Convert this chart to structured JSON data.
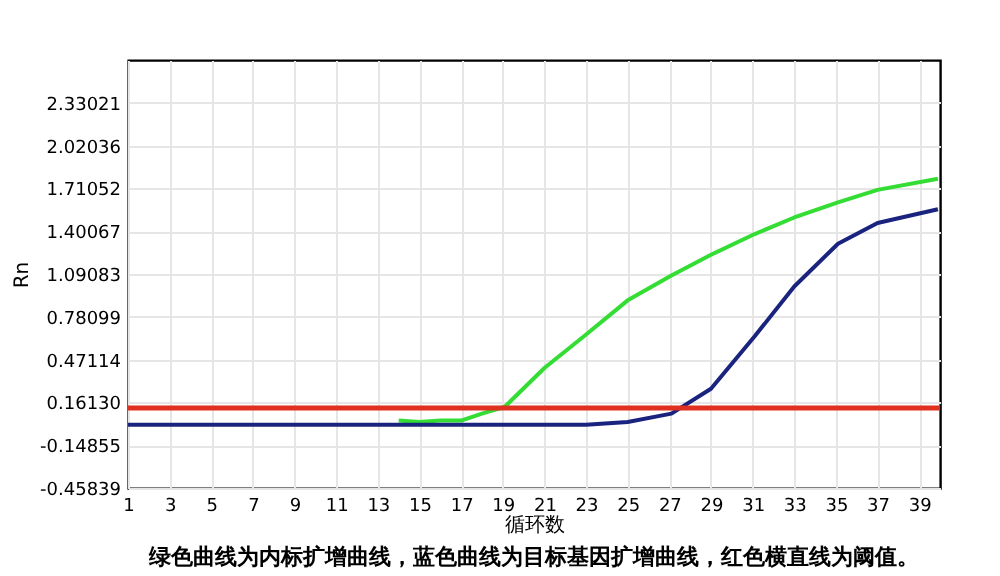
{
  "chart_data": {
    "type": "line",
    "xlabel": "循环数",
    "ylabel": "Rn",
    "annotations": [
      "绿色曲线为内标扩增曲线，蓝色曲线为目标基因扩增曲线，红色横直线为阈值。"
    ],
    "xlim": [
      1,
      40
    ],
    "xticks": [
      1,
      3,
      5,
      7,
      9,
      11,
      13,
      15,
      17,
      19,
      21,
      23,
      25,
      27,
      29,
      31,
      33,
      35,
      37,
      39
    ],
    "ylim": [
      -0.45839,
      2.64006
    ],
    "yticks": [
      -0.45839,
      -0.14855,
      {
        "value": 0.1613,
        "label": "0.16130"
      },
      0.47114,
      0.78099,
      1.09083,
      1.40067,
      1.71052,
      2.02036,
      2.33021
    ],
    "grid": true,
    "legend": false,
    "marker": "none",
    "line_style": "solid",
    "series": [
      {
        "color": "#33dd33",
        "x": [
          14,
          15,
          16,
          17,
          18,
          19.1,
          21,
          22.9,
          25,
          27.1,
          29,
          31.1,
          33,
          35.1,
          37,
          39.9
        ],
        "values": [
          0.03,
          0.02,
          0.03,
          0.03,
          0.08,
          0.13,
          0.41,
          0.64,
          0.9,
          1.08,
          1.23,
          1.38,
          1.5,
          1.61,
          1.7,
          1.78
        ]
      },
      {
        "color": "#1a237e",
        "x": [
          1,
          5,
          10,
          15,
          20,
          23,
          25,
          27.1,
          29,
          31.1,
          33,
          35.1,
          37,
          39.9
        ],
        "values": [
          0.0,
          0.0,
          0.0,
          0.0,
          0.0,
          0.0,
          0.02,
          0.08,
          0.26,
          0.64,
          1.0,
          1.31,
          1.46,
          1.56
        ]
      }
    ],
    "ref_lines": [
      {
        "axis": "y",
        "value": 0.12,
        "color": "#e03020"
      }
    ]
  }
}
